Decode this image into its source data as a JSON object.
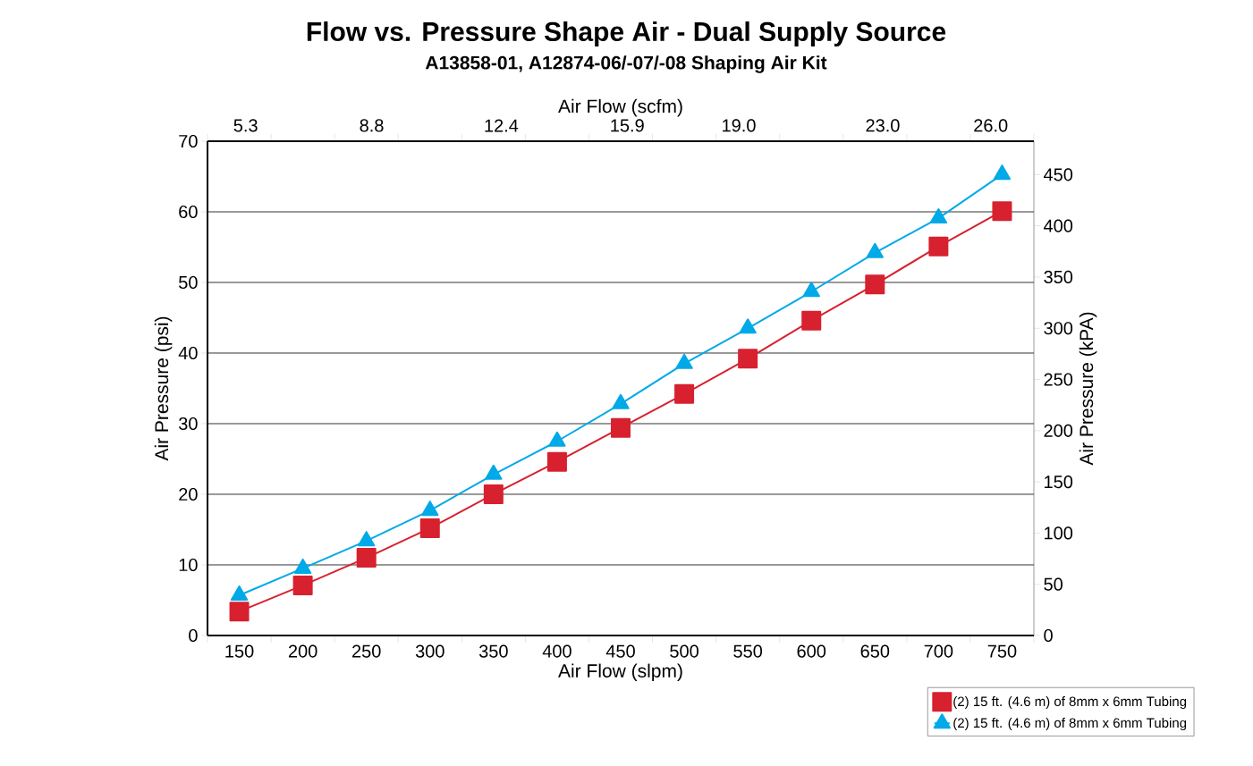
{
  "chart_data": {
    "type": "line",
    "title": "Flow vs. Pressure Shape Air - Dual Supply Source",
    "subtitle": "A13858-01, A12874-06/-07/-08 Shaping Air Kit",
    "xlabel": "Air Flow (slpm)",
    "ylabel": "Air Pressure (psi)",
    "x2label": "Air Flow (scfm)",
    "y2label": "Air Pressure (kPA)",
    "x": [
      150,
      200,
      250,
      300,
      350,
      400,
      450,
      500,
      550,
      600,
      650,
      700,
      750
    ],
    "series": [
      {
        "name": "(2) 15 ft. (4.6 m) of 8mm x 6mm Tubing",
        "color": "#d7212f",
        "marker": "square",
        "values": [
          3.4,
          7.1,
          11.0,
          15.2,
          20.0,
          24.6,
          29.4,
          34.2,
          39.2,
          44.6,
          49.7,
          55.1,
          60.1
        ]
      },
      {
        "name": "(2) 15 ft. (4.6 m) of 8mm x 6mm Tubing",
        "color": "#00a9e8",
        "marker": "triangle",
        "values": [
          5.7,
          9.5,
          13.4,
          17.7,
          22.8,
          27.5,
          32.8,
          38.5,
          43.5,
          48.7,
          54.2,
          59.1,
          65.3
        ]
      }
    ],
    "xlim": [
      125,
      775
    ],
    "xticks": [
      150,
      200,
      250,
      300,
      350,
      400,
      450,
      500,
      550,
      600,
      650,
      700,
      750,
      {
        "value": 125,
        "label": null
      },
      {
        "value": 175,
        "label": null
      },
      {
        "value": 225,
        "label": null
      },
      {
        "value": 275,
        "label": null
      },
      {
        "value": 325,
        "label": null
      },
      {
        "value": 375,
        "label": null
      },
      {
        "value": 425,
        "label": null
      },
      {
        "value": 475,
        "label": null
      },
      {
        "value": 525,
        "label": null
      },
      {
        "value": 575,
        "label": null
      },
      {
        "value": 625,
        "label": null
      },
      {
        "value": 675,
        "label": null
      },
      {
        "value": 725,
        "label": null
      },
      {
        "value": 775,
        "label": null
      }
    ],
    "ylim": [
      0,
      70
    ],
    "yticks": [
      0,
      10,
      20,
      30,
      40,
      50,
      60,
      70
    ],
    "x2lim": [
      4.24,
      27.2
    ],
    "x2ticks": [
      {
        "value": 5.3,
        "label": "5.3"
      },
      {
        "value": 8.8,
        "label": "8.8"
      },
      {
        "value": 12.4,
        "label": "12.4"
      },
      {
        "value": 15.9,
        "label": "15.9"
      },
      {
        "value": 19.0,
        "label": "19.0"
      },
      {
        "value": 23.0,
        "label": "23.0"
      },
      {
        "value": 26.0,
        "label": "26.0"
      }
    ],
    "y2lim": [
      0,
      482.6
    ],
    "y2ticks": [
      0,
      50,
      100,
      150,
      200,
      250,
      300,
      350,
      400,
      450
    ],
    "grid": "y",
    "legend": "bottom right",
    "line_style": "solid"
  }
}
